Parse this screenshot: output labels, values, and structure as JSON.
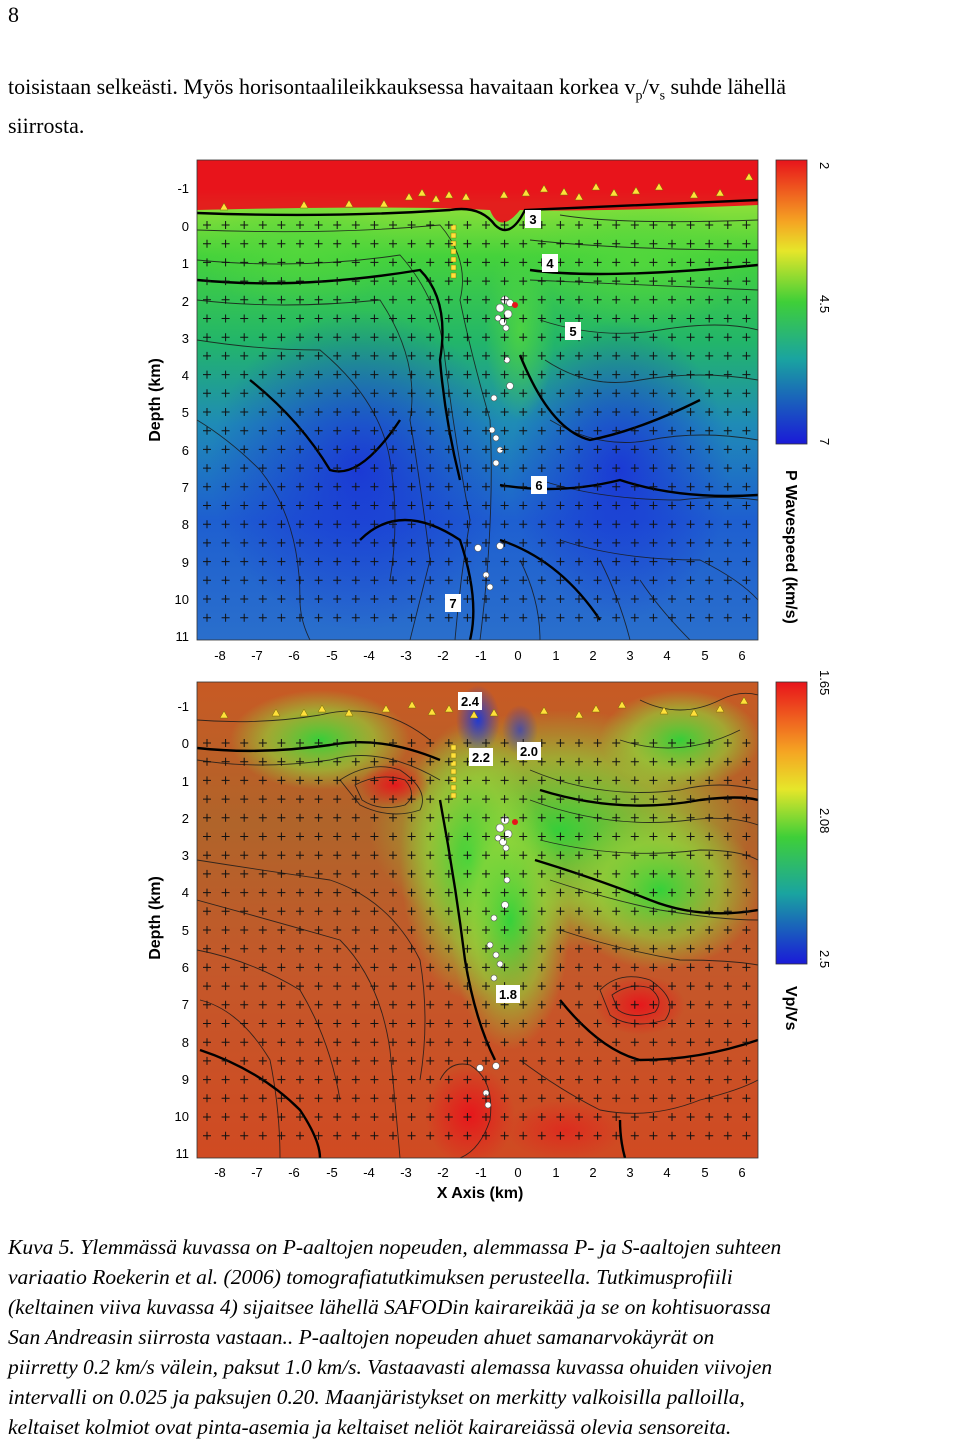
{
  "page_number": "8",
  "intro": {
    "text_1": "toisistaan selkeästi. Myös horisontaalileikkauksessa havaitaan korkea v",
    "sub_p": "p",
    "slash_v": "/v",
    "sub_s": "s",
    "text_2": " suhde lähellä",
    "text_3": "siirrosta."
  },
  "top_panel": {
    "ylabel": "Depth (km)",
    "y_ticks": [
      "-1",
      "0",
      "1",
      "2",
      "3",
      "4",
      "5",
      "6",
      "7",
      "8",
      "9",
      "10",
      "11"
    ],
    "x_ticks": [
      "-8",
      "-7",
      "-6",
      "-5",
      "-4",
      "-3",
      "-2",
      "-1",
      "0",
      "1",
      "2",
      "3",
      "4",
      "5",
      "6"
    ],
    "contour_labels": [
      "3",
      "4",
      "5",
      "6",
      "7"
    ],
    "colorbar": {
      "ticks": [
        "2",
        "4.5",
        "7"
      ],
      "title": "P Wavespeed (km/s)",
      "colors": [
        "#e8141b",
        "#f7e826",
        "#3fcf38",
        "#1e86c8",
        "#1a1ad8"
      ]
    }
  },
  "bottom_panel": {
    "ylabel": "Depth (km)",
    "xlabel": "X Axis (km)",
    "y_ticks": [
      "-1",
      "0",
      "1",
      "2",
      "3",
      "4",
      "5",
      "6",
      "7",
      "8",
      "9",
      "10",
      "11"
    ],
    "x_ticks": [
      "-8",
      "-7",
      "-6",
      "-5",
      "-4",
      "-3",
      "-2",
      "-1",
      "0",
      "1",
      "2",
      "3",
      "4",
      "5",
      "6"
    ],
    "contour_labels": [
      "2.4",
      "2.2",
      "2.0",
      "1.8"
    ],
    "colorbar": {
      "ticks": [
        "1.65",
        "2.08",
        "2.5"
      ],
      "title": "Vp/Vs",
      "colors": [
        "#e8141b",
        "#f7e826",
        "#3fcf38",
        "#1e86c8",
        "#1a1ad8"
      ]
    }
  },
  "caption": {
    "line_1": "Kuva 5. Ylemmässä kuvassa on P-aaltojen nopeuden, alemmassa P- ja S-aaltojen suhteen",
    "line_2": "variaatio Roekerin et al. (2006) tomografiatutkimuksen perusteella. Tutkimusprofiili",
    "line_3": "(keltainen viiva kuvassa 4) sijaitsee lähellä SAFODin kairareikää ja se on kohtisuorassa",
    "line_4": "San Andreasin siirrosta vastaan.. P-aaltojen nopeuden ahuet samanarvokäyrät on",
    "line_5": "piirretty 0.2 km/s välein, paksut 1.0 km/s. Vastaavasti alemassa kuvassa ohuiden viivojen",
    "line_6": "intervalli on 0.025 ja paksujen 0.20. Maanjäristykset on merkitty valkoisilla palloilla,",
    "line_7": "keltaiset kolmiot ovat pinta-asemia ja keltaiset neliöt kairareiässä olevia sensoreita."
  }
}
